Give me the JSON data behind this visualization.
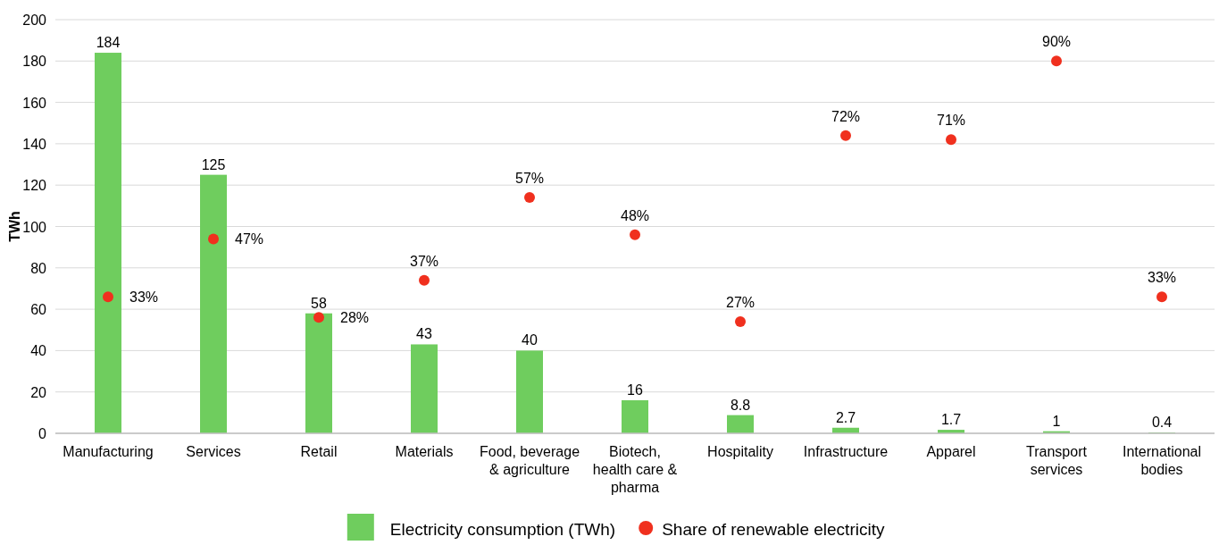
{
  "chart_data": {
    "type": "bar",
    "ylabel": "TWh",
    "categories": [
      "Manufacturing",
      "Services",
      "Retail",
      "Materials",
      "Food, beverage & agriculture",
      "Biotech, health care & pharma",
      "Hospitality",
      "Infrastructure",
      "Apparel",
      "Transport services",
      "International bodies"
    ],
    "series": [
      {
        "name": "Electricity consumption (TWh)",
        "color": "#6fcd5e",
        "values": [
          184,
          125,
          58,
          43,
          40,
          16,
          8.8,
          2.7,
          1.7,
          1,
          0.4
        ]
      },
      {
        "name": "Share of renewable electricity",
        "type": "scatter",
        "axis": "y2",
        "color": "#f0301e",
        "values": [
          33,
          47,
          28,
          37,
          57,
          48,
          27,
          72,
          71,
          90,
          33
        ],
        "value_labels": [
          "33%",
          "47%",
          "28%",
          "37%",
          "57%",
          "48%",
          "27%",
          "72%",
          "71%",
          "90%",
          "33%"
        ]
      }
    ],
    "data_labels": true,
    "ylim": [
      0,
      200
    ],
    "yticks": [
      0,
      20,
      40,
      60,
      80,
      100,
      120,
      140,
      160,
      180,
      200
    ],
    "y2lim": [
      0,
      100
    ],
    "grid": "y",
    "legend": "bottom",
    "marker": "circle"
  }
}
